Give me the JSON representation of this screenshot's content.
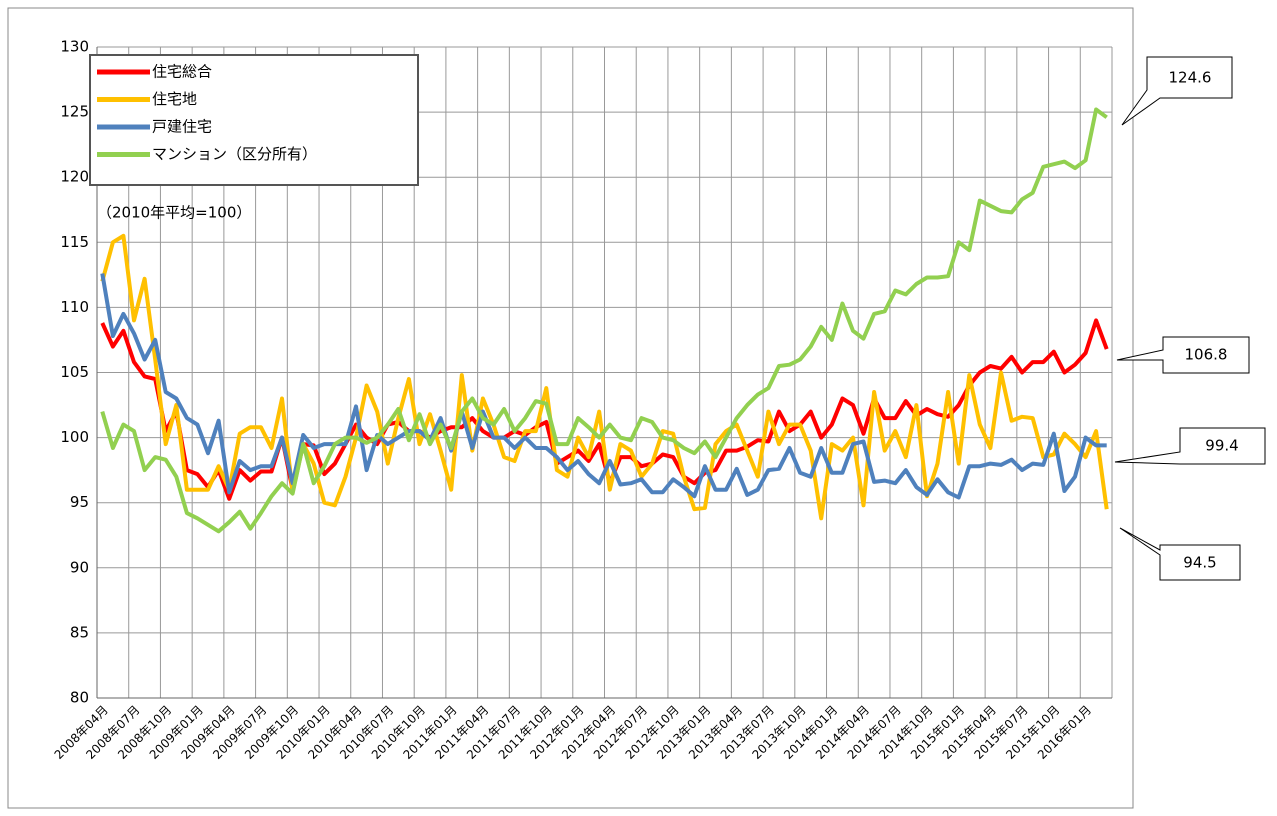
{
  "chart_data": {
    "type": "line",
    "ylabel": "（2010年平均=100）",
    "categories": [
      "2008年04月",
      null,
      null,
      "2008年07月",
      null,
      null,
      "2008年10月",
      null,
      null,
      "2009年01月",
      null,
      null,
      "2009年04月",
      null,
      null,
      "2009年07月",
      null,
      null,
      "2009年10月",
      null,
      null,
      "2010年01月",
      null,
      null,
      "2010年04月",
      null,
      null,
      "2010年07月",
      null,
      null,
      "2010年10月",
      null,
      null,
      "2011年01月",
      null,
      null,
      "2011年04月",
      null,
      null,
      "2011年07月",
      null,
      null,
      "2011年10月",
      null,
      null,
      "2012年01月",
      null,
      null,
      "2012年04月",
      null,
      null,
      "2012年07月",
      null,
      null,
      "2012年10月",
      null,
      null,
      "2013年01月",
      null,
      null,
      "2013年04月",
      null,
      null,
      "2013年07月",
      null,
      null,
      "2013年10月",
      null,
      null,
      "2014年01月",
      null,
      null,
      "2014年04月",
      null,
      null,
      "2014年07月",
      null,
      null,
      "2014年10月",
      null,
      null,
      "2015年01月",
      null,
      null,
      "2015年04月",
      null,
      null,
      "2015年07月",
      null,
      null,
      "2015年10月",
      null,
      null,
      "2016年01月",
      null,
      null
    ],
    "series": [
      {
        "name": "住宅総合",
        "color": "#ff0000",
        "values": [
          108.8,
          107.0,
          108.2,
          105.8,
          104.7,
          104.5,
          100.5,
          102.0,
          97.5,
          97.2,
          96.2,
          97.5,
          95.3,
          97.5,
          96.7,
          97.4,
          97.4,
          100.0,
          96.0,
          99.5,
          99.4,
          97.2,
          98.0,
          99.5,
          101.0,
          100.0,
          99.5,
          101.0,
          101.2,
          100.5,
          100.5,
          100.0,
          100.5,
          100.8,
          100.8,
          101.5,
          100.5,
          100.0,
          100.0,
          100.5,
          100.2,
          100.8,
          101.2,
          98.0,
          98.5,
          99.0,
          98.2,
          99.5,
          96.5,
          98.5,
          98.5,
          97.8,
          98.0,
          98.7,
          98.5,
          97.0,
          96.5,
          97.3,
          97.5,
          99.0,
          99.0,
          99.3,
          99.8,
          99.7,
          102.0,
          100.5,
          101.0,
          102.0,
          100.0,
          101.0,
          103.0,
          102.5,
          100.3,
          103.0,
          101.5,
          101.5,
          102.8,
          101.7,
          102.2,
          101.8,
          101.6,
          102.5,
          104.0,
          105.0,
          105.5,
          105.3,
          106.2,
          105.0,
          105.8,
          105.8,
          106.6,
          105.0,
          105.6,
          106.5,
          109.0,
          106.8
        ]
      },
      {
        "name": "住宅地",
        "color": "#ffc000",
        "values": [
          112.0,
          115.0,
          115.5,
          109.0,
          112.2,
          106.0,
          99.5,
          102.5,
          96.0,
          96.0,
          96.0,
          97.8,
          96.0,
          100.3,
          100.8,
          100.8,
          99.2,
          103.0,
          95.8,
          99.5,
          98.0,
          95.0,
          94.8,
          97.0,
          100.0,
          104.0,
          102.0,
          98.0,
          101.5,
          104.5,
          99.5,
          101.8,
          99.0,
          96.0,
          104.8,
          99.0,
          103.0,
          101.0,
          98.5,
          98.2,
          100.5,
          100.5,
          103.8,
          97.5,
          97.0,
          100.0,
          98.5,
          102.0,
          96.0,
          99.5,
          99.0,
          97.0,
          98.0,
          100.5,
          100.3,
          97.0,
          94.5,
          94.6,
          99.5,
          100.5,
          101.0,
          99.0,
          97.0,
          102.0,
          99.5,
          101.0,
          101.0,
          99.0,
          93.8,
          99.5,
          99.0,
          100.0,
          94.8,
          103.5,
          99.0,
          100.5,
          98.5,
          102.5,
          95.5,
          98.0,
          103.5,
          98.0,
          104.8,
          101.0,
          99.2,
          105.0,
          101.3,
          101.6,
          101.5,
          98.5,
          98.7,
          100.3,
          99.5,
          98.5,
          100.5,
          94.5
        ]
      },
      {
        "name": "戸建住宅",
        "color": "#4f81bd",
        "values": [
          112.6,
          107.8,
          109.5,
          108.0,
          106.0,
          107.5,
          103.5,
          103.0,
          101.5,
          101.0,
          98.8,
          101.3,
          95.8,
          98.2,
          97.5,
          97.8,
          97.8,
          100.0,
          96.5,
          100.2,
          99.2,
          99.5,
          99.5,
          99.5,
          102.4,
          97.5,
          100.2,
          99.5,
          100.0,
          100.5,
          100.5,
          99.8,
          101.5,
          99.0,
          102.0,
          99.2,
          102.0,
          100.0,
          100.0,
          99.2,
          100.0,
          99.2,
          99.2,
          98.5,
          97.5,
          98.2,
          97.2,
          96.5,
          98.2,
          96.4,
          96.5,
          96.8,
          95.8,
          95.8,
          96.8,
          96.2,
          95.5,
          97.8,
          96.0,
          96.0,
          97.6,
          95.6,
          96.0,
          97.5,
          97.6,
          99.2,
          97.3,
          97.0,
          99.2,
          97.3,
          97.3,
          99.5,
          99.7,
          96.6,
          96.7,
          96.5,
          97.5,
          96.2,
          95.6,
          96.8,
          95.8,
          95.4,
          97.8,
          97.8,
          98.0,
          97.9,
          98.3,
          97.5,
          98.0,
          97.9,
          100.3,
          95.9,
          97.0,
          100.0,
          99.4,
          99.4
        ]
      },
      {
        "name": "マンション（区分所有）",
        "color": "#92d050",
        "values": [
          102.0,
          99.2,
          101.0,
          100.5,
          97.5,
          98.5,
          98.3,
          97.0,
          94.2,
          93.8,
          93.3,
          92.8,
          93.5,
          94.3,
          93.0,
          94.2,
          95.5,
          96.5,
          95.7,
          99.5,
          96.5,
          97.8,
          99.5,
          100.0,
          100.0,
          99.6,
          100.0,
          101.0,
          102.2,
          99.8,
          101.8,
          99.5,
          101.0,
          99.2,
          102.0,
          103.0,
          101.5,
          101.0,
          102.2,
          100.5,
          101.5,
          102.8,
          102.6,
          99.5,
          99.5,
          101.5,
          100.8,
          100.0,
          101.0,
          100.0,
          99.8,
          101.5,
          101.2,
          100.0,
          99.8,
          99.2,
          98.8,
          99.7,
          98.5,
          100.0,
          101.5,
          102.5,
          103.3,
          103.8,
          105.5,
          105.6,
          106.0,
          107.0,
          108.5,
          107.5,
          110.3,
          108.2,
          107.6,
          109.5,
          109.7,
          111.3,
          111.0,
          111.8,
          112.3,
          112.3,
          112.4,
          115.0,
          114.4,
          118.2,
          117.8,
          117.4,
          117.3,
          118.3,
          118.8,
          120.8,
          121.0,
          121.2,
          120.7,
          121.3,
          125.2,
          124.6
        ]
      }
    ],
    "annotations": [
      "124.6",
      "106.8",
      "99.4",
      "94.5"
    ],
    "ylim": [
      80,
      130
    ],
    "yticks": [
      80,
      85,
      90,
      95,
      100,
      105,
      110,
      115,
      120,
      125,
      130
    ],
    "grid": true,
    "legend": "upper left"
  }
}
